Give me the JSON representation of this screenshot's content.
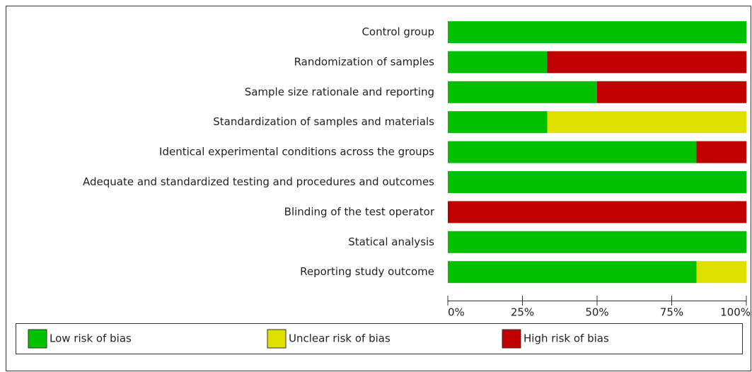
{
  "chart_data": {
    "type": "stacked-bar-horizontal",
    "categories": [
      "Control group",
      "Randomization of samples",
      "Sample size rationale and reporting",
      "Standardization of samples and materials",
      "Identical experimental conditions across the groups",
      "Adequate and standardized testing and procedures and outcomes",
      "Blinding of the test operator",
      "Statical analysis",
      "Reporting study outcome"
    ],
    "series": [
      {
        "name": "Low risk of bias",
        "color": "#00c000",
        "values": [
          100,
          33.3,
          50,
          33.3,
          83.3,
          100,
          0,
          100,
          83.3
        ]
      },
      {
        "name": "Unclear risk of bias",
        "color": "#e0e000",
        "values": [
          0,
          0,
          0,
          66.7,
          0,
          0,
          0,
          0,
          16.7
        ]
      },
      {
        "name": "High risk of bias",
        "color": "#c00000",
        "values": [
          0,
          66.7,
          50,
          0,
          16.7,
          0,
          100,
          0,
          0
        ]
      }
    ],
    "xlim": [
      0,
      100
    ],
    "xticks": [
      {
        "value": 0,
        "label": "0%"
      },
      {
        "value": 25,
        "label": "25%"
      },
      {
        "value": 50,
        "label": "50%"
      },
      {
        "value": 75,
        "label": "75%"
      },
      {
        "value": 100,
        "label": "100%"
      }
    ],
    "legend": "bottom"
  }
}
